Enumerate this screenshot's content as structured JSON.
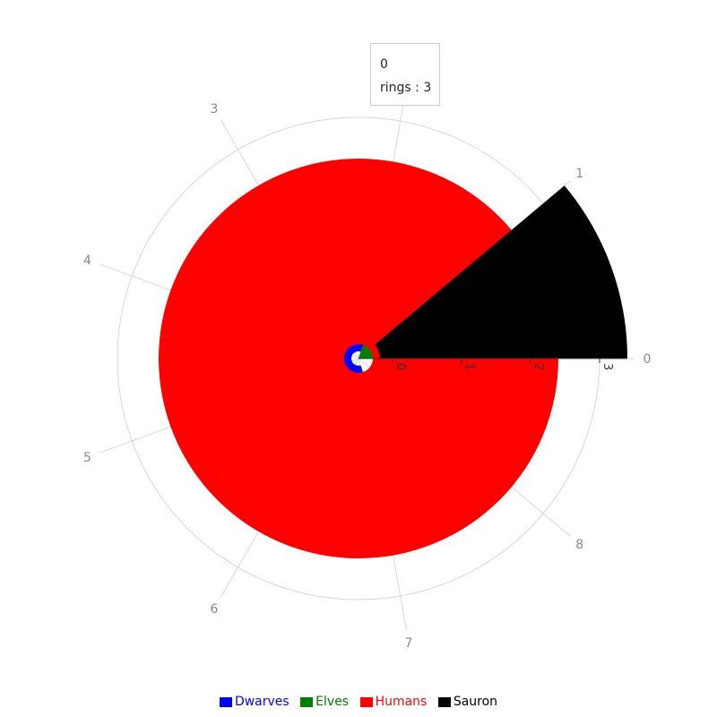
{
  "chart_data": {
    "type": "radial-bar",
    "angular_categories": [
      "0",
      "1",
      "3",
      "4",
      "5",
      "6",
      "7",
      "8"
    ],
    "radial_ticks": [
      "0",
      "1",
      "2",
      "3"
    ],
    "series": [
      {
        "name": "Dwarves",
        "color": "#0000ff",
        "ring": 1,
        "value": 7.2
      },
      {
        "name": "Elves",
        "color": "#008000",
        "ring": 0,
        "value": 1.8
      },
      {
        "name": "Humans",
        "color": "#ff0000",
        "ring": 2,
        "value": 9
      },
      {
        "name": "Sauron",
        "color": "#000000",
        "ring": 3,
        "value": 1
      }
    ],
    "angular_max": 9,
    "tooltip": {
      "title": "0",
      "label": "rings",
      "value": "3"
    },
    "legend_position": "bottom",
    "grid": true
  }
}
